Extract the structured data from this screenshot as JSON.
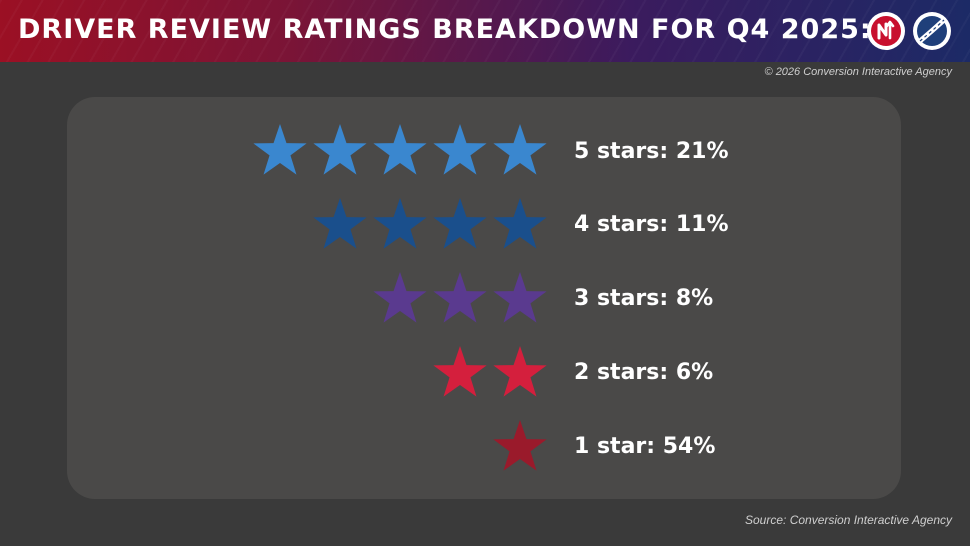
{
  "header": {
    "title": "DRIVER REVIEW RATINGS BREAKDOWN FOR Q4 2025:"
  },
  "copyright": "© 2026 Conversion Interactive Agency",
  "source": "Source: Conversion Interactive Agency",
  "logos": [
    "nsi-logo",
    "partner-logo"
  ],
  "chart_data": {
    "type": "bar",
    "categories": [
      "5 stars",
      "4 stars",
      "3 stars",
      "2 stars",
      "1 star"
    ],
    "star_counts": [
      5,
      4,
      3,
      2,
      1
    ],
    "values": [
      21,
      11,
      8,
      6,
      54
    ],
    "unit": "%",
    "labels": [
      "5 stars: 21%",
      "4 stars: 11%",
      "3 stars: 8%",
      "2 stars: 6%",
      "1 star: 54%"
    ],
    "colors": [
      "#3a87cf",
      "#1a4f8c",
      "#5a3a8f",
      "#d41f3d",
      "#9a1a2b"
    ],
    "title": "",
    "xlabel": "",
    "ylabel": ""
  }
}
